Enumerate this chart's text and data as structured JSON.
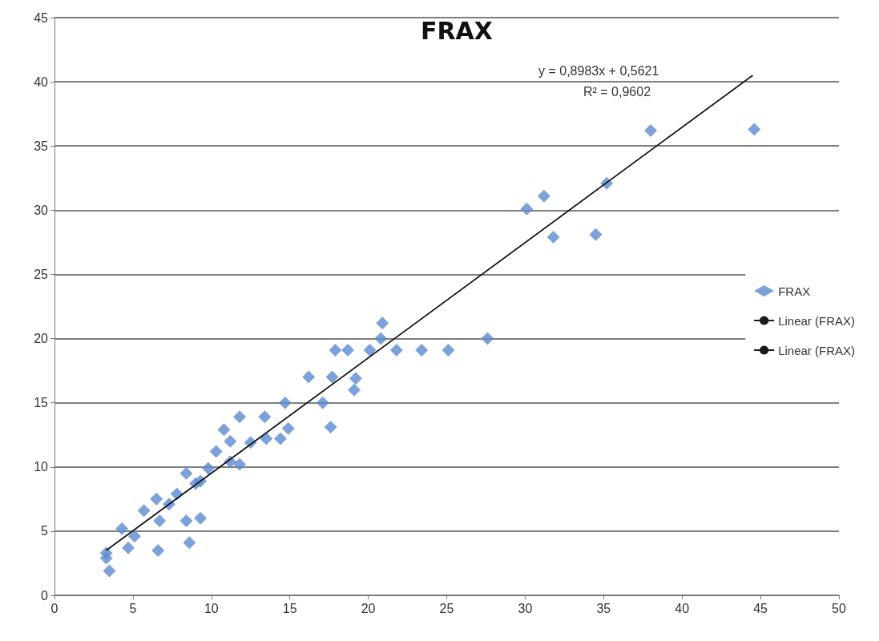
{
  "chart_data": {
    "type": "scatter",
    "title": "FRAX",
    "marker": "diamond",
    "grid": "y",
    "legend": "right",
    "xlim": [
      0,
      50
    ],
    "xticks": [
      0,
      5,
      10,
      15,
      20,
      25,
      30,
      35,
      40,
      45,
      50
    ],
    "ylim": [
      0,
      45
    ],
    "yticks": [
      0,
      5,
      10,
      15,
      20,
      25,
      30,
      35,
      40,
      45
    ],
    "annotations": [
      "y = 0,8983x + 0,5621",
      "R² = 0,9602"
    ],
    "series": [
      {
        "name": "FRAX",
        "color": "#5b8bd0",
        "x": [
          3.3,
          3.5,
          3.3,
          4.3,
          4.7,
          5.1,
          5.7,
          6.5,
          6.6,
          6.7,
          7.3,
          7.8,
          8.4,
          8.6,
          8.4,
          9.3,
          9.3,
          9.0,
          9.8,
          10.3,
          10.8,
          11.2,
          11.8,
          11.8,
          11.2,
          12.5,
          13.5,
          14.4,
          13.4,
          14.9,
          14.7,
          16.2,
          17.1,
          17.6,
          17.7,
          17.9,
          18.7,
          19.1,
          19.2,
          20.1,
          20.8,
          20.9,
          21.8,
          23.4,
          25.1,
          27.6,
          30.1,
          31.2,
          31.8,
          34.5,
          35.2,
          38.0,
          44.6
        ],
        "values": [
          2.9,
          1.9,
          3.3,
          5.2,
          3.7,
          4.6,
          6.6,
          7.5,
          3.5,
          5.8,
          7.1,
          7.9,
          9.5,
          4.1,
          5.8,
          6.0,
          8.9,
          8.7,
          9.9,
          11.2,
          12.9,
          12.0,
          13.9,
          10.2,
          10.4,
          11.9,
          12.2,
          12.2,
          13.9,
          13.0,
          15.0,
          17.0,
          15.0,
          13.1,
          17.0,
          19.1,
          19.1,
          16.0,
          16.9,
          19.1,
          20.0,
          21.2,
          19.1,
          19.1,
          19.1,
          20.0,
          30.1,
          31.1,
          27.9,
          28.1,
          32.1,
          36.2,
          36.3
        ]
      },
      {
        "name": "Linear (FRAX)",
        "type": "line",
        "color": "#1a1a1a",
        "marker": "none",
        "x": [
          3.3,
          44.5
        ],
        "values": [
          3.5,
          40.5
        ]
      },
      {
        "name": "Linear (FRAX)",
        "type": "line",
        "color": "#1a1a1a",
        "marker": "none",
        "x": [
          3.3,
          44.5
        ],
        "values": [
          3.5,
          40.5
        ]
      }
    ]
  }
}
